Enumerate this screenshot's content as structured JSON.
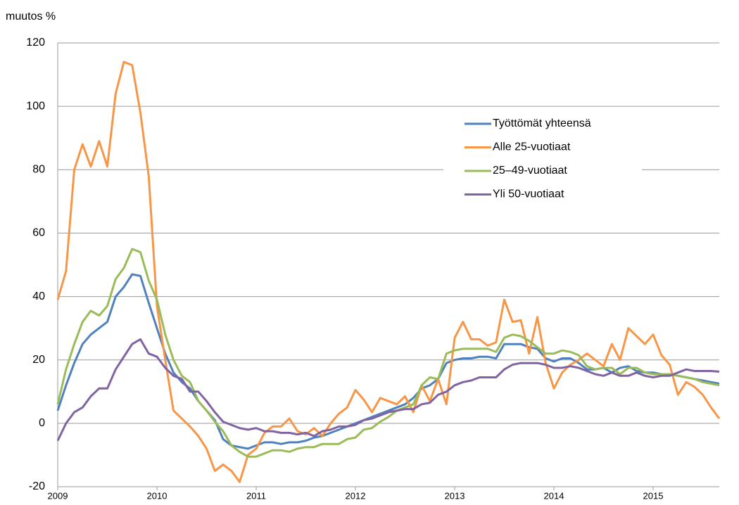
{
  "chart_data": {
    "type": "line",
    "y_label": "muutos %",
    "categories": [
      "2009",
      null,
      null,
      null,
      null,
      null,
      null,
      null,
      null,
      null,
      null,
      null,
      "2010",
      null,
      null,
      null,
      null,
      null,
      null,
      null,
      null,
      null,
      null,
      null,
      "2011",
      null,
      null,
      null,
      null,
      null,
      null,
      null,
      null,
      null,
      null,
      null,
      "2012",
      null,
      null,
      null,
      null,
      null,
      null,
      null,
      null,
      null,
      null,
      null,
      "2013",
      null,
      null,
      null,
      null,
      null,
      null,
      null,
      null,
      null,
      null,
      null,
      "2014",
      null,
      null,
      null,
      null,
      null,
      null,
      null,
      null,
      null,
      null,
      null,
      "2015",
      null,
      null,
      null,
      null,
      null,
      null,
      null,
      null
    ],
    "ylim": [
      -20,
      120
    ],
    "yticks": [
      -20,
      0,
      20,
      40,
      60,
      80,
      100,
      120
    ],
    "grid": true,
    "legend": "upper right",
    "series": [
      {
        "name": "Työttömät yhteensä",
        "color": "#4f81bd",
        "values": [
          4,
          12,
          19,
          25,
          28,
          30,
          32,
          40,
          43,
          47,
          46.5,
          38,
          30,
          22,
          16,
          13,
          11,
          7,
          4,
          1,
          -5,
          -7,
          -7.5,
          -8,
          -7,
          -6,
          -6,
          -6.5,
          -6,
          -6,
          -5.5,
          -4.5,
          -4,
          -3,
          -2,
          -1,
          0,
          1,
          2,
          3,
          4,
          5,
          6,
          8,
          11,
          12,
          14,
          19,
          20,
          20.5,
          20.5,
          21,
          21,
          20.5,
          25,
          25,
          25,
          24,
          23.5,
          20.5,
          19.5,
          20.5,
          20.5,
          19,
          17,
          17,
          17.5,
          16,
          17.5,
          18,
          16.5,
          16,
          16,
          15.5,
          15.5,
          15,
          14.5,
          14,
          13.5,
          13,
          12.5
        ]
      },
      {
        "name": "Alle 25-vuotiaat",
        "color": "#f79646",
        "values": [
          39,
          48,
          80,
          88,
          81,
          89,
          81,
          104,
          114,
          113,
          98,
          78,
          37,
          20,
          4,
          1.5,
          -1,
          -4,
          -8,
          -15,
          -13,
          -15,
          -18.5,
          -10,
          -8,
          -3,
          -1,
          -1,
          1.5,
          -2.5,
          -3.5,
          -1.5,
          -4,
          0,
          3,
          5,
          10.5,
          7.5,
          3.5,
          8,
          7,
          6,
          8.5,
          3.5,
          12,
          7,
          14,
          6,
          27,
          32,
          26.5,
          26.5,
          24.5,
          25.5,
          39,
          32,
          32.5,
          22,
          33.5,
          19,
          11,
          16,
          18.5,
          20,
          22,
          20,
          18,
          25,
          20,
          30,
          27.5,
          25,
          28,
          21.5,
          18.5,
          9,
          13,
          11.5,
          9,
          5,
          1.5
        ]
      },
      {
        "name": "25–49-vuotiaat",
        "color": "#9bbb59",
        "values": [
          6,
          17,
          25,
          32,
          35.5,
          34,
          37,
          45.5,
          49,
          55,
          54,
          45,
          39,
          28,
          20,
          15,
          13,
          7,
          4,
          0.5,
          -2.5,
          -7,
          -9,
          -10.5,
          -10.5,
          -9.5,
          -8.5,
          -8.5,
          -9,
          -8,
          -7.5,
          -7.5,
          -6.5,
          -6.5,
          -6.5,
          -5,
          -4.5,
          -2,
          -1.5,
          0.5,
          2,
          4,
          5,
          6,
          12,
          14.5,
          14,
          22,
          23,
          23.5,
          23.5,
          23.5,
          23.5,
          22.5,
          27,
          28,
          27.5,
          26,
          24,
          22,
          22,
          23,
          22.5,
          21.5,
          18,
          17,
          17.5,
          17.5,
          15.5,
          17.5,
          17.5,
          16,
          15.5,
          15.5,
          15.5,
          15,
          14.5,
          14,
          13,
          12.5,
          12
        ]
      },
      {
        "name": "Yli 50-vuotiaat",
        "color": "#8064a2",
        "values": [
          -5.5,
          0,
          3.5,
          5,
          8.5,
          11,
          11,
          17,
          21,
          25,
          26.5,
          22,
          21,
          17.5,
          15,
          14,
          10,
          10,
          7,
          3.5,
          0.5,
          -0.5,
          -1.5,
          -2,
          -1.5,
          -2.5,
          -2.5,
          -3,
          -3,
          -3.5,
          -3,
          -4,
          -2.5,
          -2,
          -1,
          -1,
          -0.5,
          1,
          1.5,
          2.5,
          3.5,
          4,
          4.5,
          4.5,
          6,
          6.5,
          9,
          10,
          12,
          13,
          13.5,
          14.5,
          14.5,
          14.5,
          17,
          18.5,
          19,
          19,
          19,
          18.5,
          17.5,
          17.5,
          18,
          17.5,
          16.5,
          15.5,
          15,
          16,
          15,
          15,
          16,
          15,
          14.5,
          15,
          15,
          16,
          17,
          16.5,
          16.5,
          16.5,
          16.3
        ]
      }
    ]
  }
}
